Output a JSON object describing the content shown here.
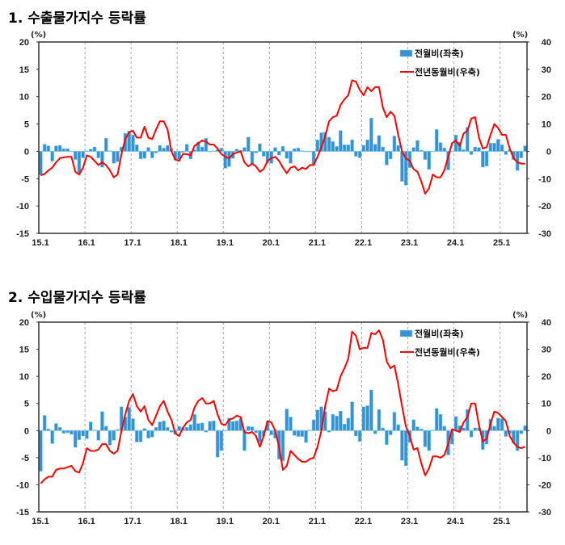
{
  "chart_data": [
    {
      "type": "bar+line",
      "title": "1. 수출물가지수 등락률",
      "left_unit": "(%)",
      "right_unit": "(%)",
      "ylim_left": [
        -15,
        20
      ],
      "ylim_right": [
        -30,
        40
      ],
      "left_ticks": [
        "20",
        "15",
        "10",
        "5",
        "0",
        "-5",
        "-10",
        "-15"
      ],
      "right_ticks": [
        "40",
        "30",
        "20",
        "10",
        "0",
        "-10",
        "-20",
        "-30"
      ],
      "x_ticks": [
        "15.1",
        "16.1",
        "17.1",
        "18.1",
        "19.1",
        "20.1",
        "21.1",
        "22.1",
        "23.1",
        "24.1",
        "25.1"
      ],
      "grid": "vertical dashed at year starts",
      "legend_placement": "top-right",
      "colors": {
        "bar": "#3a8fd0",
        "bar_edge": "#7fd4f5",
        "line": "#ff0000"
      },
      "series": [
        {
          "name": "전월비(좌축)",
          "axis": "left",
          "kind": "bar",
          "values": [
            -4.3,
            1.3,
            1.0,
            -1.8,
            1.0,
            1.1,
            0.5,
            0.5,
            -0.1,
            -1.5,
            -3.9,
            -1.2,
            0.1,
            0.4,
            0.8,
            -1.2,
            -2.9,
            2.4,
            0.1,
            -2.2,
            -1.9,
            0.8,
            3.3,
            3.7,
            3.0,
            1.2,
            -1.4,
            -1.3,
            0.7,
            -1.2,
            -0.3,
            1.1,
            0.6,
            1.1,
            0.5,
            -1.6,
            -1.5,
            -0.2,
            1.3,
            -1.4,
            0.3,
            1.7,
            0.8,
            2.4,
            -0.1,
            0.1,
            0.3,
            0.6,
            -3.1,
            -2.8,
            -1.3,
            0.4,
            0.2,
            0.7,
            2.6,
            -2.3,
            -0.3,
            1.4,
            -0.9,
            -2.1,
            -2.2,
            0.7,
            -0.7,
            0.9,
            -1.3,
            -2.2,
            0.5,
            0.6,
            0.1,
            -0.1,
            -0.1,
            -2.4,
            2.1,
            3.4,
            3.5,
            2.6,
            1.8,
            0.9,
            3.8,
            1.2,
            1.2,
            2.1,
            -0.9,
            -1.2,
            1.1,
            2.1,
            6.1,
            1.3,
            2.9,
            0.8,
            -2.5,
            -1.4,
            2.8,
            1.1,
            -5.5,
            -6.2,
            -3.0,
            0.7,
            2.0,
            0.2,
            -1.5,
            -3.3,
            0.0,
            4.0,
            1.6,
            0.6,
            -3.4,
            0.0,
            3.0,
            1.7,
            0.3,
            4.4,
            -0.6,
            0.8,
            0.7,
            -2.9,
            -2.7,
            1.5,
            1.5,
            2.2,
            1.2,
            -0.6,
            0.3,
            -1.5,
            -3.5,
            -1.2,
            1.0
          ]
        },
        {
          "name": "전년동월비(우축)",
          "axis": "right",
          "kind": "line",
          "values": [
            -8.8,
            -8.3,
            -7,
            -6,
            -4,
            -2.5,
            -2.2,
            -2,
            -2,
            -7.5,
            -8.5,
            -6,
            -1.5,
            -2,
            -3.5,
            -5,
            -4,
            -5,
            -7,
            -9.5,
            -8.5,
            -1,
            4.5,
            7,
            7.5,
            5,
            5,
            9,
            5,
            4.5,
            8,
            11,
            11,
            8,
            0,
            -3,
            -3.5,
            -1,
            -1,
            -1.5,
            2,
            3,
            4,
            3.5,
            2.5,
            2.5,
            1,
            -1,
            -2,
            -2.5,
            -1,
            -0.5,
            0,
            -4,
            -5.5,
            -4.5,
            -5.5,
            -7.5,
            -6.5,
            -3.5,
            -2.5,
            -2,
            -3.5,
            -6,
            -8,
            -6,
            -5.5,
            -7,
            -6,
            -6.5,
            -5,
            -5,
            -2,
            1.5,
            5.5,
            11,
            12.5,
            13,
            17,
            19,
            20.5,
            26,
            25.5,
            22.5,
            20.5,
            23.5,
            22,
            23.5,
            23.5,
            16,
            12.5,
            14.5,
            13,
            6,
            0,
            -2.5,
            -3.5,
            -6.5,
            -7.5,
            -11,
            -15.5,
            -13.5,
            -8.5,
            -9.5,
            -9.5,
            -7,
            -2,
            3,
            4,
            2,
            6.5,
            7.5,
            12,
            12.5,
            5,
            1,
            1.5,
            6,
            10,
            8.5,
            6,
            6,
            1,
            -2.5,
            -4,
            -4.5,
            -4.5
          ]
        }
      ]
    },
    {
      "type": "bar+line",
      "title": "2. 수입물가지수 등락률",
      "left_unit": "(%)",
      "right_unit": "(%)",
      "ylim_left": [
        -15,
        20
      ],
      "ylim_right": [
        -30,
        40
      ],
      "left_ticks": [
        "20",
        "15",
        "10",
        "5",
        "0",
        "-5",
        "-10",
        "-15"
      ],
      "right_ticks": [
        "40",
        "30",
        "20",
        "10",
        "0",
        "-10",
        "-20",
        "-30"
      ],
      "x_ticks": [
        "15.1",
        "16.1",
        "17.1",
        "18.1",
        "19.1",
        "20.1",
        "21.1",
        "22.1",
        "23.1",
        "24.1",
        "25.1"
      ],
      "grid": "vertical dashed at year starts",
      "legend_placement": "top-right",
      "colors": {
        "bar": "#3a8fd0",
        "bar_edge": "#7fd4f5",
        "line": "#ff0000"
      },
      "series": [
        {
          "name": "전월비(좌축)",
          "axis": "left",
          "kind": "bar",
          "values": [
            -7.5,
            2.8,
            0.3,
            -2.4,
            1.3,
            0.6,
            -0.5,
            -0.4,
            -0.7,
            -3.1,
            -1.7,
            -1.0,
            -1.5,
            1.6,
            0.1,
            -1.8,
            3.5,
            0.8,
            -2.7,
            -1.8,
            0.2,
            4.4,
            2.5,
            4.3,
            2.2,
            -2.1,
            -2.1,
            0.4,
            -1.4,
            -1.2,
            0.6,
            1.6,
            1.8,
            0.6,
            -0.3,
            -0.7,
            0.8,
            0.6,
            0.6,
            1.1,
            3.0,
            1.3,
            1.4,
            -0.3,
            1.7,
            1.8,
            -4.9,
            -3.7,
            -0.1,
            2.3,
            1.7,
            1.8,
            2.2,
            -3.7,
            0.8,
            0.7,
            -0.4,
            -2.1,
            -1.0,
            1.7,
            -0.8,
            -1.4,
            -5.3,
            -5.6,
            4.0,
            2.5,
            -0.9,
            -1.1,
            -1.1,
            -2.2,
            0.1,
            2.0,
            3.8,
            4.4,
            3.5,
            -0.3,
            3.0,
            2.7,
            3.6,
            1.2,
            2.3,
            5.3,
            -1.0,
            -2.0,
            4.4,
            4.6,
            7.5,
            -0.6,
            3.9,
            0.5,
            -2.6,
            -0.8,
            3.4,
            1.1,
            -5.5,
            -6.5,
            -2.2,
            2.0,
            0.7,
            0.3,
            -3.0,
            -3.7,
            0.1,
            4.1,
            3.0,
            0.8,
            -4.5,
            -2.5,
            2.6,
            0.9,
            0.5,
            3.9,
            -1.2,
            0.5,
            0.5,
            -3.5,
            -2.5,
            2.1,
            0.8,
            2.3,
            2.2,
            -1.1,
            -0.5,
            -2.3,
            -3.7,
            -0.6,
            0.9
          ]
        },
        {
          "name": "전년동월비(우축)",
          "axis": "right",
          "kind": "line",
          "values": [
            -19.5,
            -18,
            -17,
            -17,
            -14.5,
            -14,
            -14,
            -13.5,
            -13,
            -15,
            -15.5,
            -12,
            -6.5,
            -7.5,
            -7.5,
            -7,
            -5,
            -5,
            -7.5,
            -8.5,
            -7.5,
            0,
            6,
            11,
            13.5,
            9,
            7,
            9,
            4,
            2,
            5.5,
            9,
            11,
            7,
            4,
            -1,
            -2,
            1,
            3,
            4,
            8.5,
            11,
            12,
            10,
            10,
            11,
            6,
            2.5,
            2,
            4,
            4.5,
            5.5,
            5,
            -0.5,
            -1,
            -0.5,
            -2,
            -6,
            -2,
            3.5,
            3,
            0,
            -6,
            -14.5,
            -13,
            -7.5,
            -9,
            -10.5,
            -11.5,
            -11.5,
            -10.5,
            -10,
            -6,
            0,
            9,
            15.5,
            14.5,
            15,
            20,
            23,
            26.5,
            36.5,
            35,
            30,
            30.5,
            30.5,
            36,
            35.5,
            37,
            33.5,
            25.5,
            23,
            24,
            17,
            9,
            1.5,
            -2,
            -7,
            -6.5,
            -12,
            -16.5,
            -14,
            -9.5,
            -9.5,
            -10,
            -9,
            -5,
            0.5,
            0,
            -0.5,
            3,
            5,
            10,
            10,
            2,
            -4,
            -3,
            2.5,
            7,
            6.5,
            5,
            3.5,
            -2,
            -4.5,
            -6,
            -6.5,
            -6
          ]
        }
      ]
    }
  ]
}
